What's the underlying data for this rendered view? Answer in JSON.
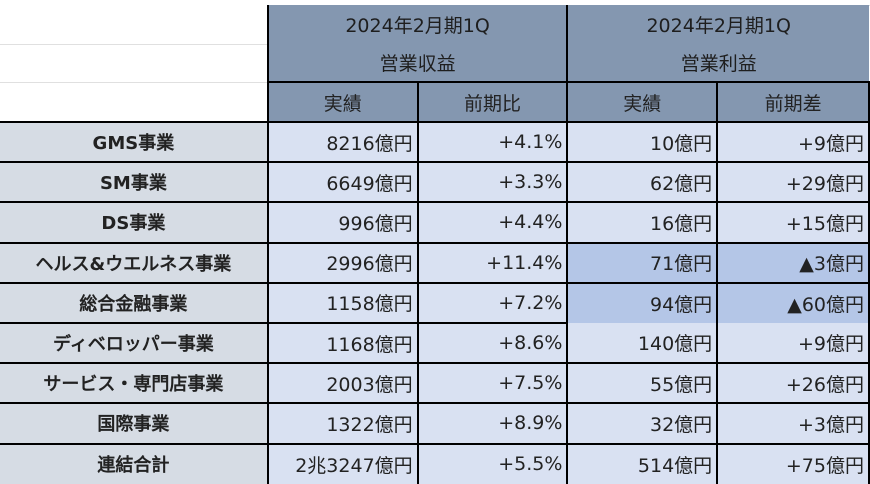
{
  "header": {
    "group1": {
      "period": "2024年2月期1Q",
      "metric": "営業収益"
    },
    "group2": {
      "period": "2024年2月期1Q",
      "metric": "営業利益"
    },
    "columns": [
      "実績",
      "前期比",
      "実績",
      "前期差"
    ]
  },
  "rows": [
    {
      "segment": "GMS事業",
      "revenue": "8216億円",
      "revenue_yoy": "+4.1%",
      "profit": "10億円",
      "profit_diff": "+9億円"
    },
    {
      "segment": "SM事業",
      "revenue": "6649億円",
      "revenue_yoy": "+3.3%",
      "profit": "62億円",
      "profit_diff": "+29億円"
    },
    {
      "segment": "DS事業",
      "revenue": "996億円",
      "revenue_yoy": "+4.4%",
      "profit": "16億円",
      "profit_diff": "+15億円"
    },
    {
      "segment": "ヘルス&ウエルネス事業",
      "revenue": "2996億円",
      "revenue_yoy": "+11.4%",
      "profit": "71億円",
      "profit_diff": "▲3億円",
      "highlight": true
    },
    {
      "segment": "総合金融事業",
      "revenue": "1158億円",
      "revenue_yoy": "+7.2%",
      "profit": "94億円",
      "profit_diff": "▲60億円",
      "highlight": true
    },
    {
      "segment": "ディベロッパー事業",
      "revenue": "1168億円",
      "revenue_yoy": "+8.6%",
      "profit": "140億円",
      "profit_diff": "+9億円"
    },
    {
      "segment": "サービス・専門店事業",
      "revenue": "2003億円",
      "revenue_yoy": "+7.5%",
      "profit": "55億円",
      "profit_diff": "+26億円"
    },
    {
      "segment": "国際事業",
      "revenue": "1322億円",
      "revenue_yoy": "+8.9%",
      "profit": "32億円",
      "profit_diff": "+3億円"
    },
    {
      "segment": "連結合計",
      "revenue": "2兆3247億円",
      "revenue_yoy": "+5.5%",
      "profit": "514億円",
      "profit_diff": "+75億円"
    }
  ],
  "colors": {
    "header": "#8497b0",
    "label": "#d6dce4",
    "cell": "#d9e1f2",
    "highlight": "#b4c6e7"
  }
}
